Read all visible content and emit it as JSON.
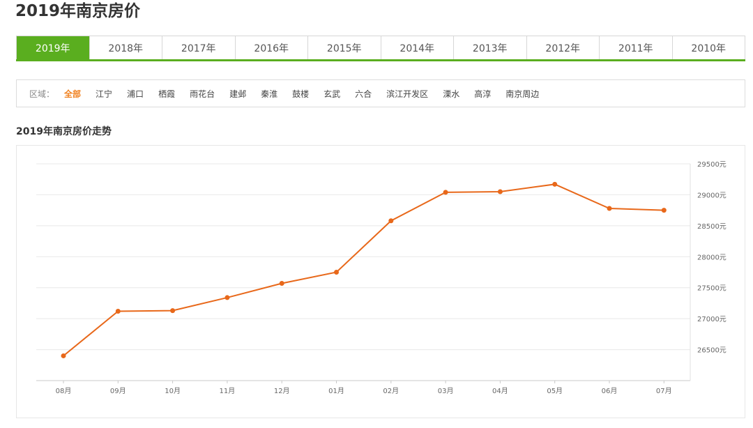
{
  "page": {
    "title": "2019年南京房价"
  },
  "year_tabs": {
    "items": [
      "2019年",
      "2018年",
      "2017年",
      "2016年",
      "2015年",
      "2014年",
      "2013年",
      "2012年",
      "2011年",
      "2010年"
    ],
    "active_index": 0
  },
  "region_filter": {
    "label": "区域：",
    "items": [
      "全部",
      "江宁",
      "浦口",
      "栖霞",
      "雨花台",
      "建邺",
      "秦淮",
      "鼓楼",
      "玄武",
      "六合",
      "滨江开发区",
      "溧水",
      "高淳",
      "南京周边"
    ],
    "active_index": 0
  },
  "chart_data": {
    "type": "line",
    "title": "2019年南京房价走势",
    "categories": [
      "08月",
      "09月",
      "10月",
      "11月",
      "12月",
      "01月",
      "02月",
      "03月",
      "04月",
      "05月",
      "06月",
      "07月"
    ],
    "series": [
      {
        "values": [
          26400,
          27120,
          27130,
          27340,
          27570,
          27750,
          28580,
          29040,
          29050,
          29170,
          28780,
          28750
        ]
      }
    ],
    "y_ticks": [
      {
        "value": 26500,
        "label": "26500元"
      },
      {
        "value": 27000,
        "label": "27000元"
      },
      {
        "value": 27500,
        "label": "27500元"
      },
      {
        "value": 28000,
        "label": "28000元"
      },
      {
        "value": 28500,
        "label": "28500元"
      },
      {
        "value": 29000,
        "label": "29000元"
      },
      {
        "value": 29500,
        "label": "29500元"
      }
    ],
    "ylim": [
      26000,
      29500
    ],
    "y_axis_position": "right",
    "grid": true,
    "color": "#e8681a"
  }
}
